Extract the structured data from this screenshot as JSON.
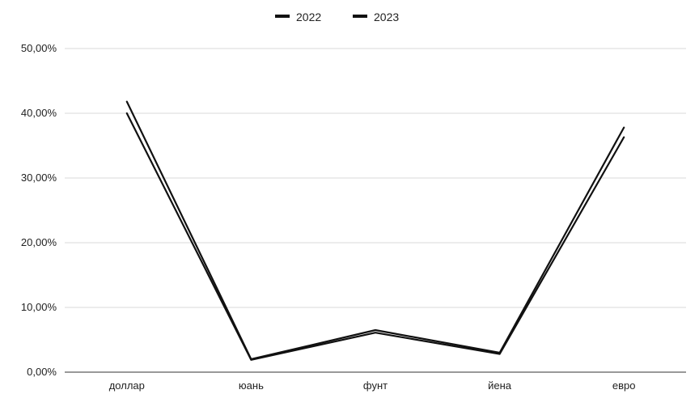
{
  "chart_data": {
    "type": "line",
    "categories": [
      "доллар",
      "юань",
      "фунт",
      "йена",
      "евро"
    ],
    "series": [
      {
        "name": "2022",
        "values": [
          41.8,
          2.0,
          6.5,
          3.0,
          37.8
        ],
        "color": "#111111"
      },
      {
        "name": "2023",
        "values": [
          40.0,
          1.9,
          6.1,
          2.8,
          36.3
        ],
        "color": "#111111"
      }
    ],
    "y_ticks": [
      "0,00%",
      "10,00%",
      "20,00%",
      "30,00%",
      "40,00%",
      "50,00%"
    ],
    "ylim": [
      0,
      50
    ],
    "grid": true,
    "legend_position": "top-center",
    "title": "",
    "xlabel": "",
    "ylabel": ""
  }
}
